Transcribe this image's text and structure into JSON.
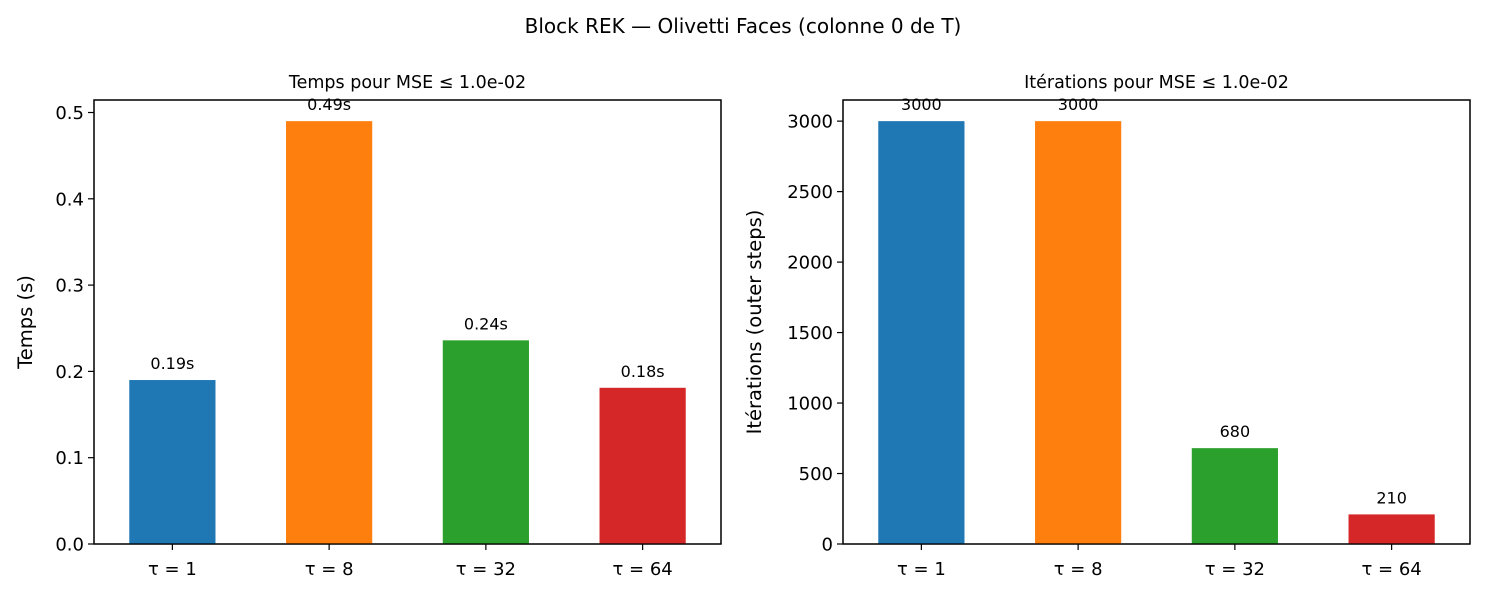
{
  "figure": {
    "suptitle": "Block REK — Olivetti Faces (colonne 0 de T)"
  },
  "colors": {
    "tau_1": "#1f77b4",
    "tau_8": "#ff7f0e",
    "tau_32": "#2ca02c",
    "tau_64": "#d62728"
  },
  "chart_data": [
    {
      "type": "bar",
      "title": "Temps pour MSE ≤ 1.0e-02",
      "xlabel": "",
      "ylabel": "Temps (s)",
      "categories": [
        "τ = 1",
        "τ = 8",
        "τ = 32",
        "τ = 64"
      ],
      "values": [
        0.19,
        0.49,
        0.236,
        0.181
      ],
      "value_labels": [
        "0.19s",
        "0.49s",
        "0.24s",
        "0.18s"
      ],
      "colors": [
        "#1f77b4",
        "#ff7f0e",
        "#2ca02c",
        "#d62728"
      ],
      "ylim": [
        0,
        0.5145
      ],
      "yticks": [
        0.0,
        0.1,
        0.2,
        0.3,
        0.4,
        0.5
      ],
      "ytick_labels": [
        "0.0",
        "0.1",
        "0.2",
        "0.3",
        "0.4",
        "0.5"
      ],
      "grid": false,
      "legend": "none"
    },
    {
      "type": "bar",
      "title": "Itérations pour MSE ≤ 1.0e-02",
      "xlabel": "",
      "ylabel": "Itérations (outer steps)",
      "categories": [
        "τ = 1",
        "τ = 8",
        "τ = 32",
        "τ = 64"
      ],
      "values": [
        3000,
        3000,
        680,
        210
      ],
      "value_labels": [
        "3000",
        "3000",
        "680",
        "210"
      ],
      "colors": [
        "#1f77b4",
        "#ff7f0e",
        "#2ca02c",
        "#d62728"
      ],
      "ylim": [
        0,
        3150
      ],
      "yticks": [
        0,
        500,
        1000,
        1500,
        2000,
        2500,
        3000
      ],
      "ytick_labels": [
        "0",
        "500",
        "1000",
        "1500",
        "2000",
        "2500",
        "3000"
      ],
      "grid": false,
      "legend": "none"
    }
  ]
}
